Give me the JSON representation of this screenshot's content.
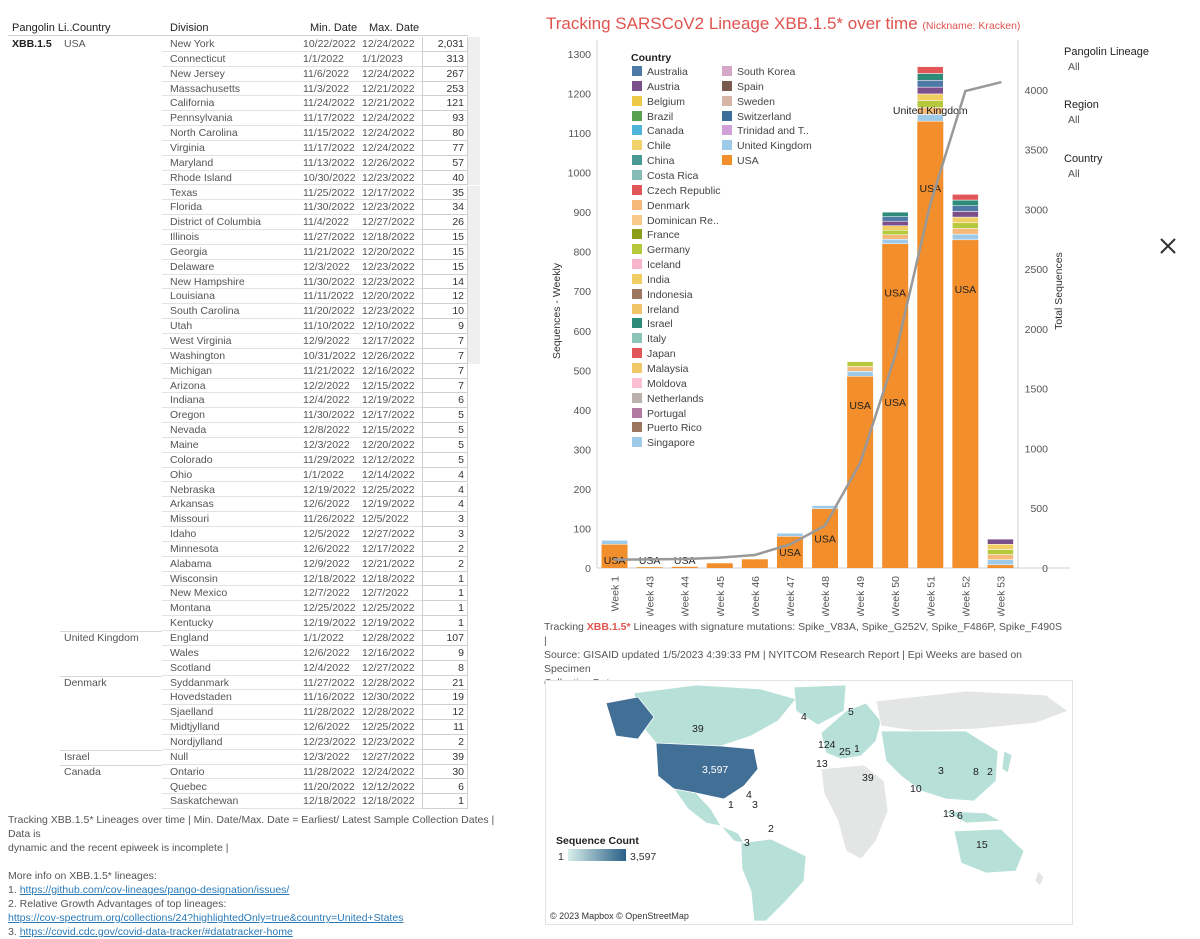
{
  "table": {
    "headers": {
      "lineage": "Pangolin Li..",
      "country": "Country",
      "division": "Division",
      "min": "Min. Date",
      "max": "Max. Date"
    },
    "lineage": "XBB.1.5",
    "countries": [
      {
        "name": "USA",
        "start": 0
      },
      {
        "name": "United Kingdom",
        "start": 40
      },
      {
        "name": "Denmark",
        "start": 43
      },
      {
        "name": "Israel",
        "start": 48
      },
      {
        "name": "Canada",
        "start": 49
      }
    ],
    "rows": [
      {
        "division": "New York",
        "min": "10/22/2022",
        "max": "12/24/2022",
        "count": "2,031"
      },
      {
        "division": "Connecticut",
        "min": "1/1/2022",
        "max": "1/1/2023",
        "count": "313"
      },
      {
        "division": "New Jersey",
        "min": "11/6/2022",
        "max": "12/24/2022",
        "count": "267"
      },
      {
        "division": "Massachusetts",
        "min": "11/3/2022",
        "max": "12/21/2022",
        "count": "253"
      },
      {
        "division": "California",
        "min": "11/24/2022",
        "max": "12/21/2022",
        "count": "121"
      },
      {
        "division": "Pennsylvania",
        "min": "11/17/2022",
        "max": "12/24/2022",
        "count": "93"
      },
      {
        "division": "North Carolina",
        "min": "11/15/2022",
        "max": "12/24/2022",
        "count": "80"
      },
      {
        "division": "Virginia",
        "min": "11/17/2022",
        "max": "12/24/2022",
        "count": "77"
      },
      {
        "division": "Maryland",
        "min": "11/13/2022",
        "max": "12/26/2022",
        "count": "57"
      },
      {
        "division": "Rhode Island",
        "min": "10/30/2022",
        "max": "12/23/2022",
        "count": "40"
      },
      {
        "division": "Texas",
        "min": "11/25/2022",
        "max": "12/17/2022",
        "count": "35"
      },
      {
        "division": "Florida",
        "min": "11/30/2022",
        "max": "12/23/2022",
        "count": "34"
      },
      {
        "division": "District of Columbia",
        "min": "11/4/2022",
        "max": "12/27/2022",
        "count": "26"
      },
      {
        "division": "Illinois",
        "min": "11/27/2022",
        "max": "12/18/2022",
        "count": "15"
      },
      {
        "division": "Georgia",
        "min": "11/21/2022",
        "max": "12/20/2022",
        "count": "15"
      },
      {
        "division": "Delaware",
        "min": "12/3/2022",
        "max": "12/23/2022",
        "count": "15"
      },
      {
        "division": "New Hampshire",
        "min": "11/30/2022",
        "max": "12/23/2022",
        "count": "14"
      },
      {
        "division": "Louisiana",
        "min": "11/11/2022",
        "max": "12/20/2022",
        "count": "12"
      },
      {
        "division": "South Carolina",
        "min": "11/20/2022",
        "max": "12/23/2022",
        "count": "10"
      },
      {
        "division": "Utah",
        "min": "11/10/2022",
        "max": "12/10/2022",
        "count": "9"
      },
      {
        "division": "West Virginia",
        "min": "12/9/2022",
        "max": "12/17/2022",
        "count": "7"
      },
      {
        "division": "Washington",
        "min": "10/31/2022",
        "max": "12/26/2022",
        "count": "7"
      },
      {
        "division": "Michigan",
        "min": "11/21/2022",
        "max": "12/16/2022",
        "count": "7"
      },
      {
        "division": "Arizona",
        "min": "12/2/2022",
        "max": "12/15/2022",
        "count": "7"
      },
      {
        "division": "Indiana",
        "min": "12/4/2022",
        "max": "12/19/2022",
        "count": "6"
      },
      {
        "division": "Oregon",
        "min": "11/30/2022",
        "max": "12/17/2022",
        "count": "5"
      },
      {
        "division": "Nevada",
        "min": "12/8/2022",
        "max": "12/15/2022",
        "count": "5"
      },
      {
        "division": "Maine",
        "min": "12/3/2022",
        "max": "12/20/2022",
        "count": "5"
      },
      {
        "division": "Colorado",
        "min": "11/29/2022",
        "max": "12/12/2022",
        "count": "5"
      },
      {
        "division": "Ohio",
        "min": "1/1/2022",
        "max": "12/14/2022",
        "count": "4"
      },
      {
        "division": "Nebraska",
        "min": "12/19/2022",
        "max": "12/25/2022",
        "count": "4"
      },
      {
        "division": "Arkansas",
        "min": "12/6/2022",
        "max": "12/19/2022",
        "count": "4"
      },
      {
        "division": "Missouri",
        "min": "11/26/2022",
        "max": "12/5/2022",
        "count": "3"
      },
      {
        "division": "Idaho",
        "min": "12/5/2022",
        "max": "12/27/2022",
        "count": "3"
      },
      {
        "division": "Minnesota",
        "min": "12/6/2022",
        "max": "12/17/2022",
        "count": "2"
      },
      {
        "division": "Alabama",
        "min": "12/9/2022",
        "max": "12/21/2022",
        "count": "2"
      },
      {
        "division": "Wisconsin",
        "min": "12/18/2022",
        "max": "12/18/2022",
        "count": "1"
      },
      {
        "division": "New Mexico",
        "min": "12/7/2022",
        "max": "12/7/2022",
        "count": "1"
      },
      {
        "division": "Montana",
        "min": "12/25/2022",
        "max": "12/25/2022",
        "count": "1"
      },
      {
        "division": "Kentucky",
        "min": "12/19/2022",
        "max": "12/19/2022",
        "count": "1"
      },
      {
        "division": "England",
        "min": "1/1/2022",
        "max": "12/28/2022",
        "count": "107"
      },
      {
        "division": "Wales",
        "min": "12/6/2022",
        "max": "12/16/2022",
        "count": "9"
      },
      {
        "division": "Scotland",
        "min": "12/4/2022",
        "max": "12/27/2022",
        "count": "8"
      },
      {
        "division": "Syddanmark",
        "min": "11/27/2022",
        "max": "12/28/2022",
        "count": "21"
      },
      {
        "division": "Hovedstaden",
        "min": "11/16/2022",
        "max": "12/30/2022",
        "count": "19"
      },
      {
        "division": "Sjaelland",
        "min": "11/28/2022",
        "max": "12/28/2022",
        "count": "12"
      },
      {
        "division": "Midtjylland",
        "min": "12/6/2022",
        "max": "12/25/2022",
        "count": "11"
      },
      {
        "division": "Nordjylland",
        "min": "12/23/2022",
        "max": "12/23/2022",
        "count": "2"
      },
      {
        "division": "Null",
        "min": "12/3/2022",
        "max": "12/27/2022",
        "count": "39"
      },
      {
        "division": "Ontario",
        "min": "11/28/2022",
        "max": "12/24/2022",
        "count": "30"
      },
      {
        "division": "Quebec",
        "min": "11/20/2022",
        "max": "12/12/2022",
        "count": "6"
      },
      {
        "division": "Saskatchewan",
        "min": "12/18/2022",
        "max": "12/18/2022",
        "count": "1"
      }
    ]
  },
  "notes": {
    "line1": "Tracking XBB.1.5* Lineages over time | Min. Date/Max. Date = Earliest/ Latest Sample Collection Dates | Data is",
    "line2": "dynamic and the recent epiweek is incomplete |",
    "more": "More info on XBB.1.5* lineages:",
    "item1_prefix": "1. ",
    "item1_link": "https://github.com/cov-lineages/pango-designation/issues/",
    "item2": "2. Relative Growth Advantages of top lineages:",
    "item2_link": "https://cov-spectrum.org/collections/24?highlightedOnly=true&country=United+States",
    "item3_prefix": "3. ",
    "item3_link": "https://covid.cdc.gov/covid-data-tracker/#datatracker-home"
  },
  "chart_data": {
    "type": "bar",
    "title": "Tracking SARSCoV2 Lineage XBB.1.5* over time",
    "subtitle": "(Nickname: Kracken)",
    "categories": [
      "Week 1",
      "Week 43",
      "Week 44",
      "Week 45",
      "Week 46",
      "Week 47",
      "Week 48",
      "Week 49",
      "Week 50",
      "Week 51",
      "Week 52",
      "Week 53"
    ],
    "ylabel": "Sequences - Weekly",
    "y2label": "Total Sequences",
    "ylim": [
      0,
      1300
    ],
    "y2lim": [
      0,
      4000
    ],
    "yticks": [
      0,
      100,
      200,
      300,
      400,
      500,
      600,
      700,
      800,
      900,
      1000,
      1100,
      1200,
      1300
    ],
    "y2ticks": [
      0,
      500,
      1000,
      1500,
      2000,
      2500,
      3000,
      3500,
      4000
    ],
    "usa_values": [
      60,
      2,
      3,
      12,
      22,
      80,
      150,
      485,
      820,
      1130,
      830,
      8
    ],
    "total_values": [
      70,
      2,
      3,
      12,
      22,
      88,
      158,
      522,
      900,
      1268,
      945,
      73
    ],
    "bar_labels": [
      "USA",
      "USA",
      "USA",
      "",
      "",
      "USA",
      "USA",
      "USA",
      "USA",
      "USA",
      "USA",
      ""
    ],
    "extra_labels": [
      {
        "bar": 8,
        "text": "USA"
      },
      {
        "bar": 9,
        "text": "United Kingdom"
      }
    ],
    "cumulative": [
      70,
      72,
      75,
      87,
      109,
      197,
      355,
      877,
      1777,
      3045,
      3990,
      4063
    ],
    "legend_title": "Country",
    "legend": [
      {
        "name": "Australia",
        "color": "#4e79a7"
      },
      {
        "name": "Austria",
        "color": "#7b4f8a"
      },
      {
        "name": "Belgium",
        "color": "#edc948"
      },
      {
        "name": "Brazil",
        "color": "#59a14f"
      },
      {
        "name": "Canada",
        "color": "#4fb4d8"
      },
      {
        "name": "Chile",
        "color": "#f2d36b"
      },
      {
        "name": "China",
        "color": "#499894"
      },
      {
        "name": "Costa Rica",
        "color": "#86bcb6"
      },
      {
        "name": "Czech Republic",
        "color": "#e15759"
      },
      {
        "name": "Denmark",
        "color": "#f5b97a"
      },
      {
        "name": "Dominican Re..",
        "color": "#f8c98a"
      },
      {
        "name": "France",
        "color": "#8c9d1a"
      },
      {
        "name": "Germany",
        "color": "#b6c93c"
      },
      {
        "name": "Iceland",
        "color": "#f4b6c8"
      },
      {
        "name": "India",
        "color": "#f1ce63"
      },
      {
        "name": "Indonesia",
        "color": "#9d7660"
      },
      {
        "name": "Ireland",
        "color": "#f2c46a"
      },
      {
        "name": "Israel",
        "color": "#2e8b7a"
      },
      {
        "name": "Italy",
        "color": "#8cc5b8"
      },
      {
        "name": "Japan",
        "color": "#e15759"
      },
      {
        "name": "Malaysia",
        "color": "#f0c86a"
      },
      {
        "name": "Moldova",
        "color": "#fabfd2"
      },
      {
        "name": "Netherlands",
        "color": "#bab0ac"
      },
      {
        "name": "Portugal",
        "color": "#b07aa1"
      },
      {
        "name": "Puerto Rico",
        "color": "#9c755f"
      },
      {
        "name": "Singapore",
        "color": "#a0cbe8"
      },
      {
        "name": "South Korea",
        "color": "#d4a6c8"
      },
      {
        "name": "Spain",
        "color": "#7a5c4e"
      },
      {
        "name": "Sweden",
        "color": "#d7b5a6"
      },
      {
        "name": "Switzerland",
        "color": "#3c6e9c"
      },
      {
        "name": "Trinidad and T..",
        "color": "#d2a0d8"
      },
      {
        "name": "United Kingdom",
        "color": "#9ecae9"
      },
      {
        "name": "USA",
        "color": "#f28e2b"
      }
    ]
  },
  "filters": [
    {
      "label": "Pangolin Lineage",
      "value": "All"
    },
    {
      "label": "Region",
      "value": "All"
    },
    {
      "label": "Country",
      "value": "All"
    }
  ],
  "caption": {
    "prefix": "Tracking ",
    "lineage": "XBB.1.5*",
    "rest1": " Lineages with signature mutations: Spike_V83A, Spike_G252V, Spike_F486P, Spike_F490S |",
    "line2": "Source: GISAID updated 1/5/2023 4:39:33 PM | NYITCOM Research Report | Epi Weeks are based on Specimen",
    "line3": "Collection Dates"
  },
  "map": {
    "labels": [
      {
        "text": "39",
        "id": "canada"
      },
      {
        "text": "3,597",
        "id": "usa"
      },
      {
        "text": "4",
        "id": "iceland"
      },
      {
        "text": "5",
        "id": "sweden"
      },
      {
        "text": "124",
        "id": "uk"
      },
      {
        "text": "25",
        "id": "europe"
      },
      {
        "text": "1",
        "id": "europe2"
      },
      {
        "text": "13",
        "id": "portugal"
      },
      {
        "text": "39",
        "id": "israel"
      },
      {
        "text": "3",
        "id": "china"
      },
      {
        "text": "8",
        "id": "korea"
      },
      {
        "text": "2",
        "id": "japan"
      },
      {
        "text": "10",
        "id": "india"
      },
      {
        "text": "13",
        "id": "seasia"
      },
      {
        "text": "6",
        "id": "indonesia"
      },
      {
        "text": "15",
        "id": "australia"
      },
      {
        "text": "4",
        "id": "caribbean"
      },
      {
        "text": "1",
        "id": "central"
      },
      {
        "text": "3",
        "id": "colombia"
      },
      {
        "text": "2",
        "id": "brazil"
      },
      {
        "text": "3",
        "id": "chile"
      }
    ],
    "legend_title": "Sequence Count",
    "legend_min": "1",
    "legend_max": "3,597",
    "attribution": "© 2023 Mapbox © OpenStreetMap"
  }
}
